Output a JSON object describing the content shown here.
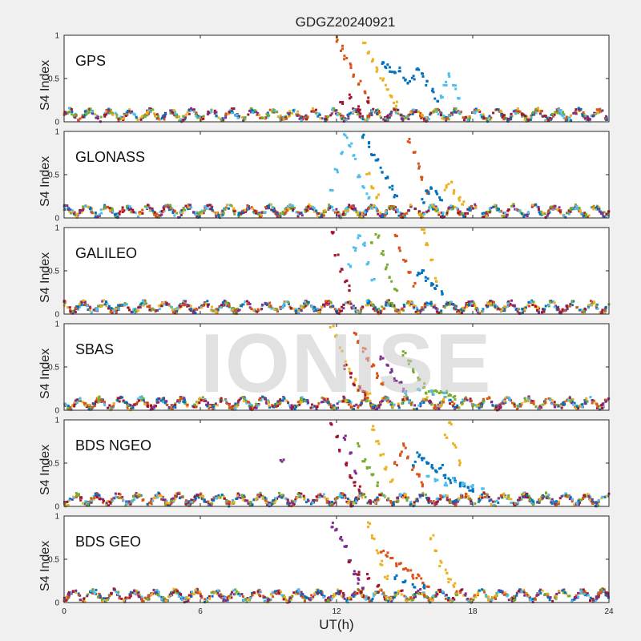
{
  "chart_data": {
    "type": "scatter",
    "title": "GDGZ20240921",
    "xlabel": "UT(h)",
    "ylabel": "S4 Index",
    "xlim": [
      0,
      24
    ],
    "ylim": [
      0,
      1
    ],
    "xticks": [
      0,
      6,
      12,
      18,
      24
    ],
    "xtick_labels": [
      "0",
      "6",
      "12",
      "18",
      "24"
    ],
    "yticks": [
      0,
      0.5,
      1
    ],
    "ytick_labels": [
      "0",
      "0.5",
      "1"
    ],
    "watermark": "IONISE",
    "panels": [
      {
        "name": "GPS",
        "series": [
          {
            "color": "#D95319",
            "x": [
              12.0,
              12.2,
              12.4,
              12.6,
              12.8,
              13.0,
              13.2,
              13.4
            ],
            "y": [
              0.95,
              0.85,
              0.75,
              0.65,
              0.55,
              0.45,
              0.35,
              0.25
            ]
          },
          {
            "color": "#EDB120",
            "x": [
              13.2,
              13.4,
              13.6,
              13.8,
              14.0,
              14.2,
              14.4,
              14.6
            ],
            "y": [
              0.9,
              0.8,
              0.7,
              0.6,
              0.5,
              0.4,
              0.3,
              0.2
            ]
          },
          {
            "color": "#0072BD",
            "x": [
              14.0,
              14.2,
              14.4,
              14.6,
              14.8,
              15.0,
              15.2,
              15.4,
              15.6,
              15.8,
              16.0,
              16.2,
              16.4
            ],
            "y": [
              0.7,
              0.65,
              0.6,
              0.55,
              0.6,
              0.5,
              0.45,
              0.5,
              0.6,
              0.55,
              0.45,
              0.35,
              0.25
            ]
          },
          {
            "color": "#4DBEEE",
            "x": [
              16.6,
              16.8,
              17.0,
              17.2,
              17.4
            ],
            "y": [
              0.3,
              0.45,
              0.55,
              0.4,
              0.25
            ]
          },
          {
            "color": "#A2142F",
            "x": [
              12.2,
              12.6,
              13.0,
              13.4
            ],
            "y": [
              0.2,
              0.3,
              0.15,
              0.25
            ]
          }
        ]
      },
      {
        "name": "GLONASS",
        "series": [
          {
            "color": "#4DBEEE",
            "x": [
              11.8,
              12.0,
              12.2,
              12.4,
              12.6,
              12.8,
              13.0,
              13.2,
              13.4
            ],
            "y": [
              0.3,
              0.55,
              0.75,
              0.95,
              0.85,
              0.7,
              0.5,
              0.35,
              0.25
            ]
          },
          {
            "color": "#0072BD",
            "x": [
              13.2,
              13.4,
              13.6,
              13.8,
              14.0,
              14.2,
              14.4,
              14.6
            ],
            "y": [
              0.95,
              0.85,
              0.75,
              0.65,
              0.55,
              0.45,
              0.35,
              0.25
            ]
          },
          {
            "color": "#D95319",
            "x": [
              15.2,
              15.4,
              15.6,
              15.8,
              16.0
            ],
            "y": [
              0.9,
              0.75,
              0.6,
              0.45,
              0.3
            ]
          },
          {
            "color": "#EDB120",
            "x": [
              13.4,
              13.6,
              13.8,
              16.8,
              17.0,
              17.2,
              17.4,
              17.6
            ],
            "y": [
              0.5,
              0.35,
              0.25,
              0.35,
              0.4,
              0.3,
              0.22,
              0.18
            ]
          },
          {
            "color": "#0072BD",
            "x": [
              15.8,
              16.0,
              16.2,
              16.4,
              16.6
            ],
            "y": [
              0.2,
              0.3,
              0.35,
              0.3,
              0.22
            ]
          }
        ]
      },
      {
        "name": "GALILEO",
        "series": [
          {
            "color": "#A2142F",
            "x": [
              11.8,
              12.0,
              12.2,
              12.4,
              12.6
            ],
            "y": [
              0.95,
              0.7,
              0.5,
              0.4,
              0.3
            ]
          },
          {
            "color": "#4DBEEE",
            "x": [
              12.6,
              12.8,
              13.0,
              13.2,
              13.4,
              13.6
            ],
            "y": [
              0.55,
              0.75,
              0.9,
              0.8,
              0.6,
              0.4
            ]
          },
          {
            "color": "#77AC30",
            "x": [
              13.6,
              13.8,
              14.0,
              14.2,
              14.4,
              14.6
            ],
            "y": [
              0.8,
              0.9,
              0.7,
              0.55,
              0.4,
              0.3
            ]
          },
          {
            "color": "#D95319",
            "x": [
              14.6,
              14.8,
              15.0,
              15.2,
              15.4
            ],
            "y": [
              0.9,
              0.75,
              0.6,
              0.5,
              0.35
            ]
          },
          {
            "color": "#EDB120",
            "x": [
              15.8,
              16.0,
              16.2,
              16.4
            ],
            "y": [
              0.95,
              0.8,
              0.6,
              0.4
            ]
          },
          {
            "color": "#0072BD",
            "x": [
              15.6,
              15.8,
              16.0,
              16.2,
              16.4,
              16.6
            ],
            "y": [
              0.45,
              0.5,
              0.4,
              0.35,
              0.3,
              0.25
            ]
          }
        ]
      },
      {
        "name": "SBAS",
        "series": [
          {
            "color": "#EDB120",
            "x": [
              11.8,
              12.0,
              12.2,
              12.4,
              12.6,
              12.8,
              13.0,
              13.2,
              13.4
            ],
            "y": [
              0.95,
              0.85,
              0.7,
              0.55,
              0.45,
              0.35,
              0.25,
              0.2,
              0.18
            ]
          },
          {
            "color": "#D95319",
            "x": [
              12.8,
              13.0,
              13.2,
              13.4,
              13.6,
              13.8,
              14.0
            ],
            "y": [
              0.9,
              0.8,
              0.7,
              0.6,
              0.5,
              0.4,
              0.3
            ]
          },
          {
            "color": "#A2142F",
            "x": [
              12.4,
              12.6,
              12.8,
              13.0,
              13.2
            ],
            "y": [
              0.5,
              0.4,
              0.3,
              0.25,
              0.2
            ]
          },
          {
            "color": "#7E2F8E",
            "x": [
              14.0,
              14.2,
              14.4,
              14.6,
              14.8,
              15.0
            ],
            "y": [
              0.6,
              0.5,
              0.45,
              0.35,
              0.3,
              0.22
            ]
          },
          {
            "color": "#77AC30",
            "x": [
              15.0,
              15.2,
              15.4,
              15.6,
              15.8,
              16.0,
              16.2,
              16.4,
              16.6,
              16.8,
              17.0,
              17.2
            ],
            "y": [
              0.65,
              0.55,
              0.45,
              0.35,
              0.28,
              0.22,
              0.2,
              0.2,
              0.22,
              0.2,
              0.18,
              0.15
            ]
          },
          {
            "color": "#4DBEEE",
            "x": [
              15.0,
              15.6,
              16.2,
              16.8
            ],
            "y": [
              0.2,
              0.25,
              0.2,
              0.18
            ]
          }
        ]
      },
      {
        "name": "BDS NGEO",
        "series": [
          {
            "color": "#A2142F",
            "x": [
              11.8,
              12.0,
              12.2,
              12.4,
              12.6,
              12.8,
              13.0
            ],
            "y": [
              0.95,
              0.8,
              0.65,
              0.5,
              0.35,
              0.25,
              0.2
            ]
          },
          {
            "color": "#7E2F8E",
            "x": [
              9.6,
              12.4,
              12.6,
              12.8
            ],
            "y": [
              0.53,
              0.8,
              0.6,
              0.4
            ]
          },
          {
            "color": "#77AC30",
            "x": [
              13.0,
              13.2,
              13.4,
              13.6,
              13.8
            ],
            "y": [
              0.7,
              0.55,
              0.45,
              0.35,
              0.25
            ]
          },
          {
            "color": "#EDB120",
            "x": [
              13.6,
              13.8,
              14.0,
              14.2,
              14.4,
              16.8,
              17.0,
              17.2,
              17.4
            ],
            "y": [
              0.9,
              0.75,
              0.6,
              0.45,
              0.3,
              0.8,
              0.95,
              0.7,
              0.5
            ]
          },
          {
            "color": "#D95319",
            "x": [
              14.6,
              14.8,
              15.0,
              15.2,
              15.4,
              15.6,
              15.8
            ],
            "y": [
              0.5,
              0.6,
              0.7,
              0.55,
              0.45,
              0.35,
              0.25
            ]
          },
          {
            "color": "#0072BD",
            "x": [
              15.4,
              15.6,
              15.8,
              16.0,
              16.2,
              16.4,
              16.6,
              16.8,
              17.0,
              17.2,
              17.4,
              17.6,
              17.8,
              18.0
            ],
            "y": [
              0.5,
              0.6,
              0.55,
              0.5,
              0.45,
              0.4,
              0.45,
              0.35,
              0.3,
              0.3,
              0.25,
              0.22,
              0.2,
              0.18
            ]
          },
          {
            "color": "#4DBEEE",
            "x": [
              16.0,
              16.4,
              16.8,
              17.2,
              17.6,
              18.0,
              18.4
            ],
            "y": [
              0.35,
              0.3,
              0.25,
              0.3,
              0.25,
              0.22,
              0.18
            ]
          }
        ]
      },
      {
        "name": "BDS GEO",
        "series": [
          {
            "color": "#7E2F8E",
            "x": [
              11.8,
              12.0,
              12.2,
              12.4,
              12.6,
              12.8,
              13.0,
              13.2
            ],
            "y": [
              0.9,
              0.85,
              0.75,
              0.65,
              0.5,
              0.35,
              0.25,
              0.15
            ]
          },
          {
            "color": "#EDB120",
            "x": [
              13.4,
              13.6,
              13.8,
              14.0,
              14.2,
              16.2,
              16.4,
              16.6,
              16.8,
              17.0,
              17.2
            ],
            "y": [
              0.9,
              0.75,
              0.6,
              0.45,
              0.3,
              0.75,
              0.6,
              0.45,
              0.35,
              0.25,
              0.2
            ]
          },
          {
            "color": "#D95319",
            "x": [
              14.0,
              14.2,
              14.4,
              14.6,
              14.8,
              15.0,
              15.2,
              15.4,
              15.6,
              15.8,
              16.0
            ],
            "y": [
              0.6,
              0.55,
              0.5,
              0.45,
              0.45,
              0.4,
              0.35,
              0.3,
              0.3,
              0.25,
              0.2
            ]
          },
          {
            "color": "#A2142F",
            "x": [
              12.6,
              13.0,
              13.4,
              13.8
            ],
            "y": [
              0.45,
              0.35,
              0.3,
              0.2
            ]
          },
          {
            "color": "#0072BD",
            "x": [
              14.6,
              15.0,
              15.4,
              15.8
            ],
            "y": [
              0.3,
              0.25,
              0.2,
              0.18
            ]
          }
        ]
      }
    ]
  }
}
